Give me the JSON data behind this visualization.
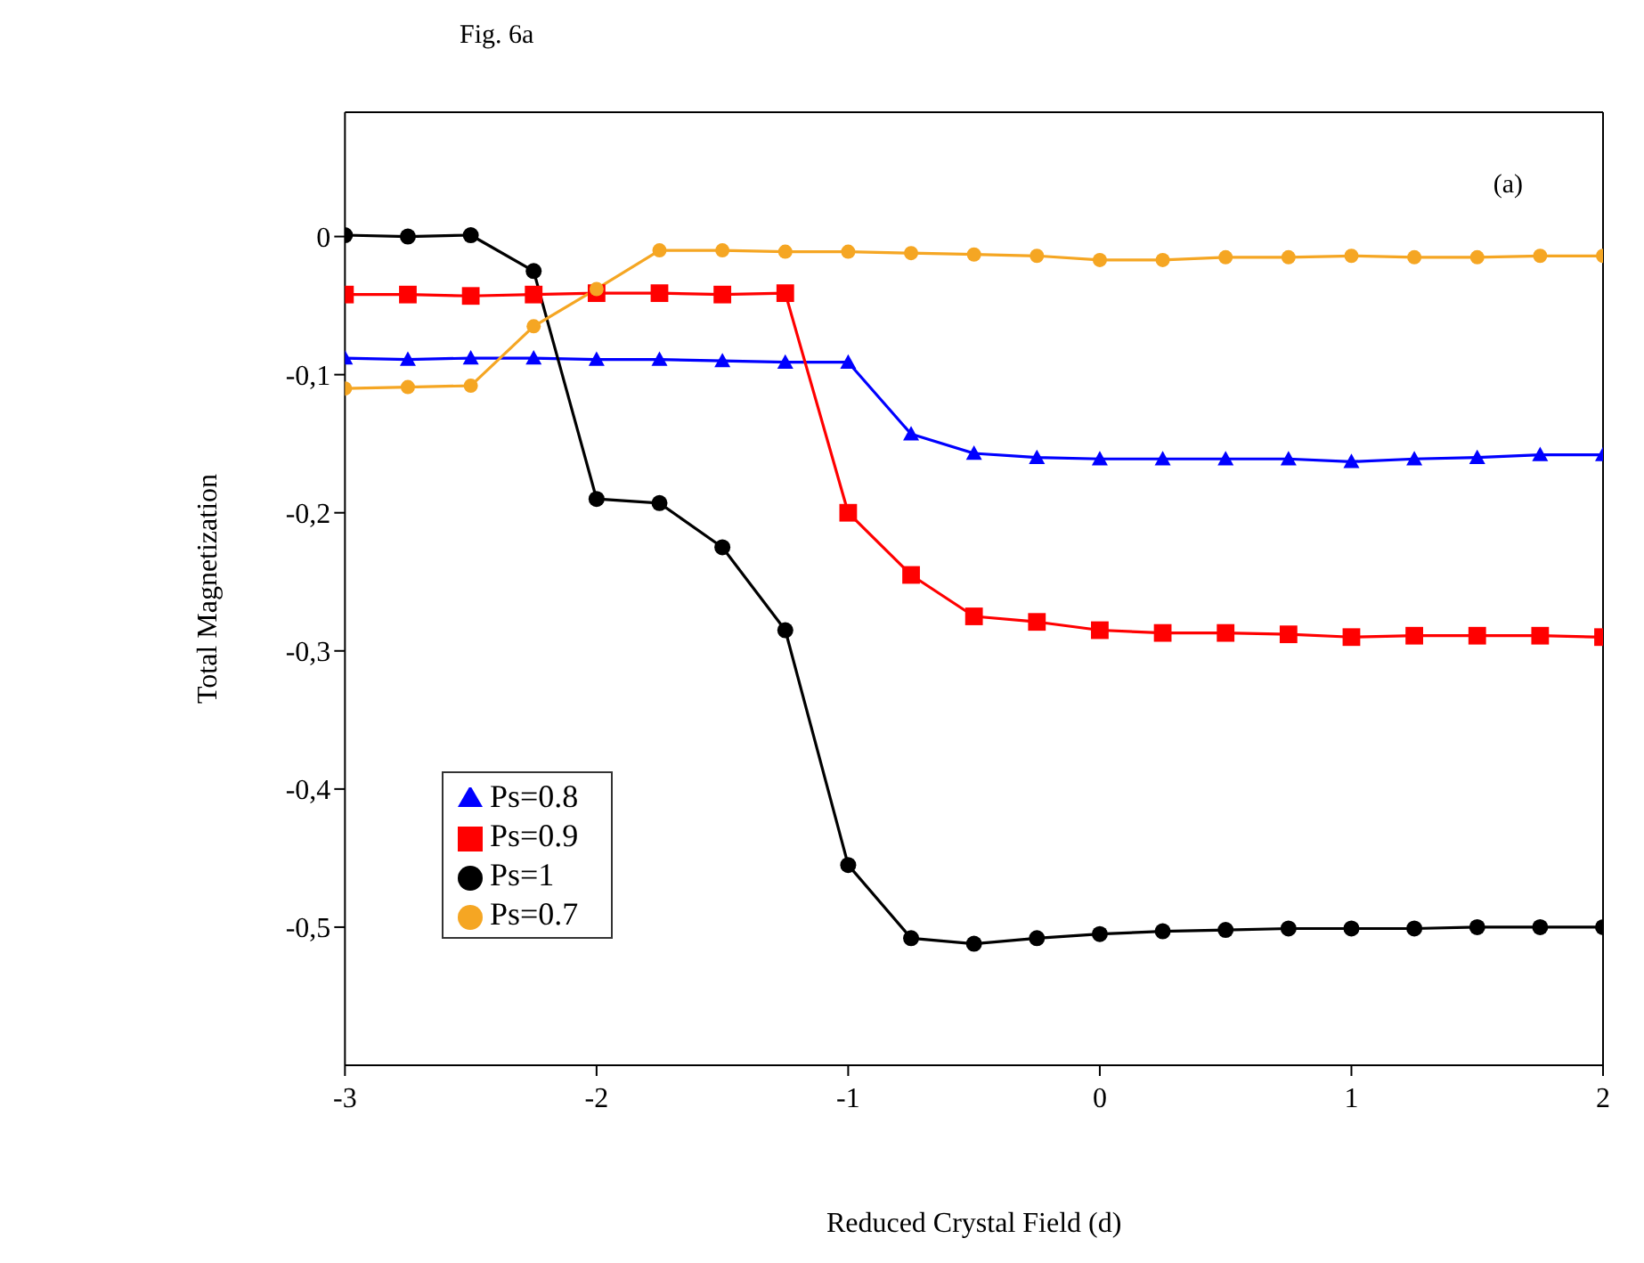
{
  "chart_data": {
    "type": "line",
    "title": "Fig. 6a",
    "xlabel": "Reduced Crystal Field (d)",
    "ylabel": "Total Magnetization",
    "annotations": [
      "(a)"
    ],
    "x": [
      -3,
      -2.75,
      -2.5,
      -2.25,
      -2,
      -1.75,
      -1.5,
      -1.25,
      -1,
      -0.75,
      -0.5,
      -0.25,
      0,
      0.25,
      0.5,
      0.75,
      1,
      1.25,
      1.5,
      1.75,
      2
    ],
    "series": [
      {
        "name": "Ps=0.8",
        "color": "#0000ff",
        "marker": "triangle",
        "values": [
          -0.088,
          -0.089,
          -0.088,
          -0.088,
          -0.089,
          -0.089,
          -0.09,
          -0.091,
          -0.091,
          -0.143,
          -0.157,
          -0.16,
          -0.161,
          -0.161,
          -0.161,
          -0.161,
          -0.163,
          -0.161,
          -0.16,
          -0.158,
          -0.158
        ]
      },
      {
        "name": "Ps=0.9",
        "color": "#ff0000",
        "marker": "square",
        "values": [
          -0.042,
          -0.042,
          -0.043,
          -0.042,
          -0.041,
          -0.041,
          -0.042,
          -0.041,
          -0.2,
          -0.245,
          -0.275,
          -0.279,
          -0.285,
          -0.287,
          -0.287,
          -0.288,
          -0.29,
          -0.289,
          -0.289,
          -0.289,
          -0.29
        ]
      },
      {
        "name": "Ps=1",
        "color": "#000000",
        "marker": "circle",
        "values": [
          0.001,
          0,
          0.001,
          -0.025,
          -0.19,
          -0.193,
          -0.225,
          -0.285,
          -0.455,
          -0.508,
          -0.512,
          -0.508,
          -0.505,
          -0.503,
          -0.502,
          -0.501,
          -0.501,
          -0.501,
          -0.5,
          -0.5,
          -0.5
        ]
      },
      {
        "name": "Ps=0.7",
        "color": "#f5a623",
        "marker": "circle",
        "values": [
          -0.11,
          -0.109,
          -0.108,
          -0.065,
          -0.038,
          -0.01,
          -0.01,
          -0.011,
          -0.011,
          -0.012,
          -0.013,
          -0.014,
          -0.017,
          -0.017,
          -0.015,
          -0.015,
          -0.014,
          -0.015,
          -0.015,
          -0.014,
          -0.014
        ]
      }
    ],
    "xlim": [
      -3,
      2
    ],
    "xticks": [
      -3,
      -2,
      -1,
      0,
      1,
      2
    ],
    "ylim": [
      -0.6,
      0.09
    ],
    "yticks": [
      {
        "value": 0,
        "label": "0"
      },
      {
        "value": -0.1,
        "label": "-0,1"
      },
      {
        "value": -0.2,
        "label": "-0,2"
      },
      {
        "value": -0.3,
        "label": "-0,3"
      },
      {
        "value": -0.4,
        "label": "-0,4"
      },
      {
        "value": -0.5,
        "label": "-0,5"
      }
    ],
    "grid": false,
    "legend": "bottom left",
    "line_style": "solid"
  }
}
